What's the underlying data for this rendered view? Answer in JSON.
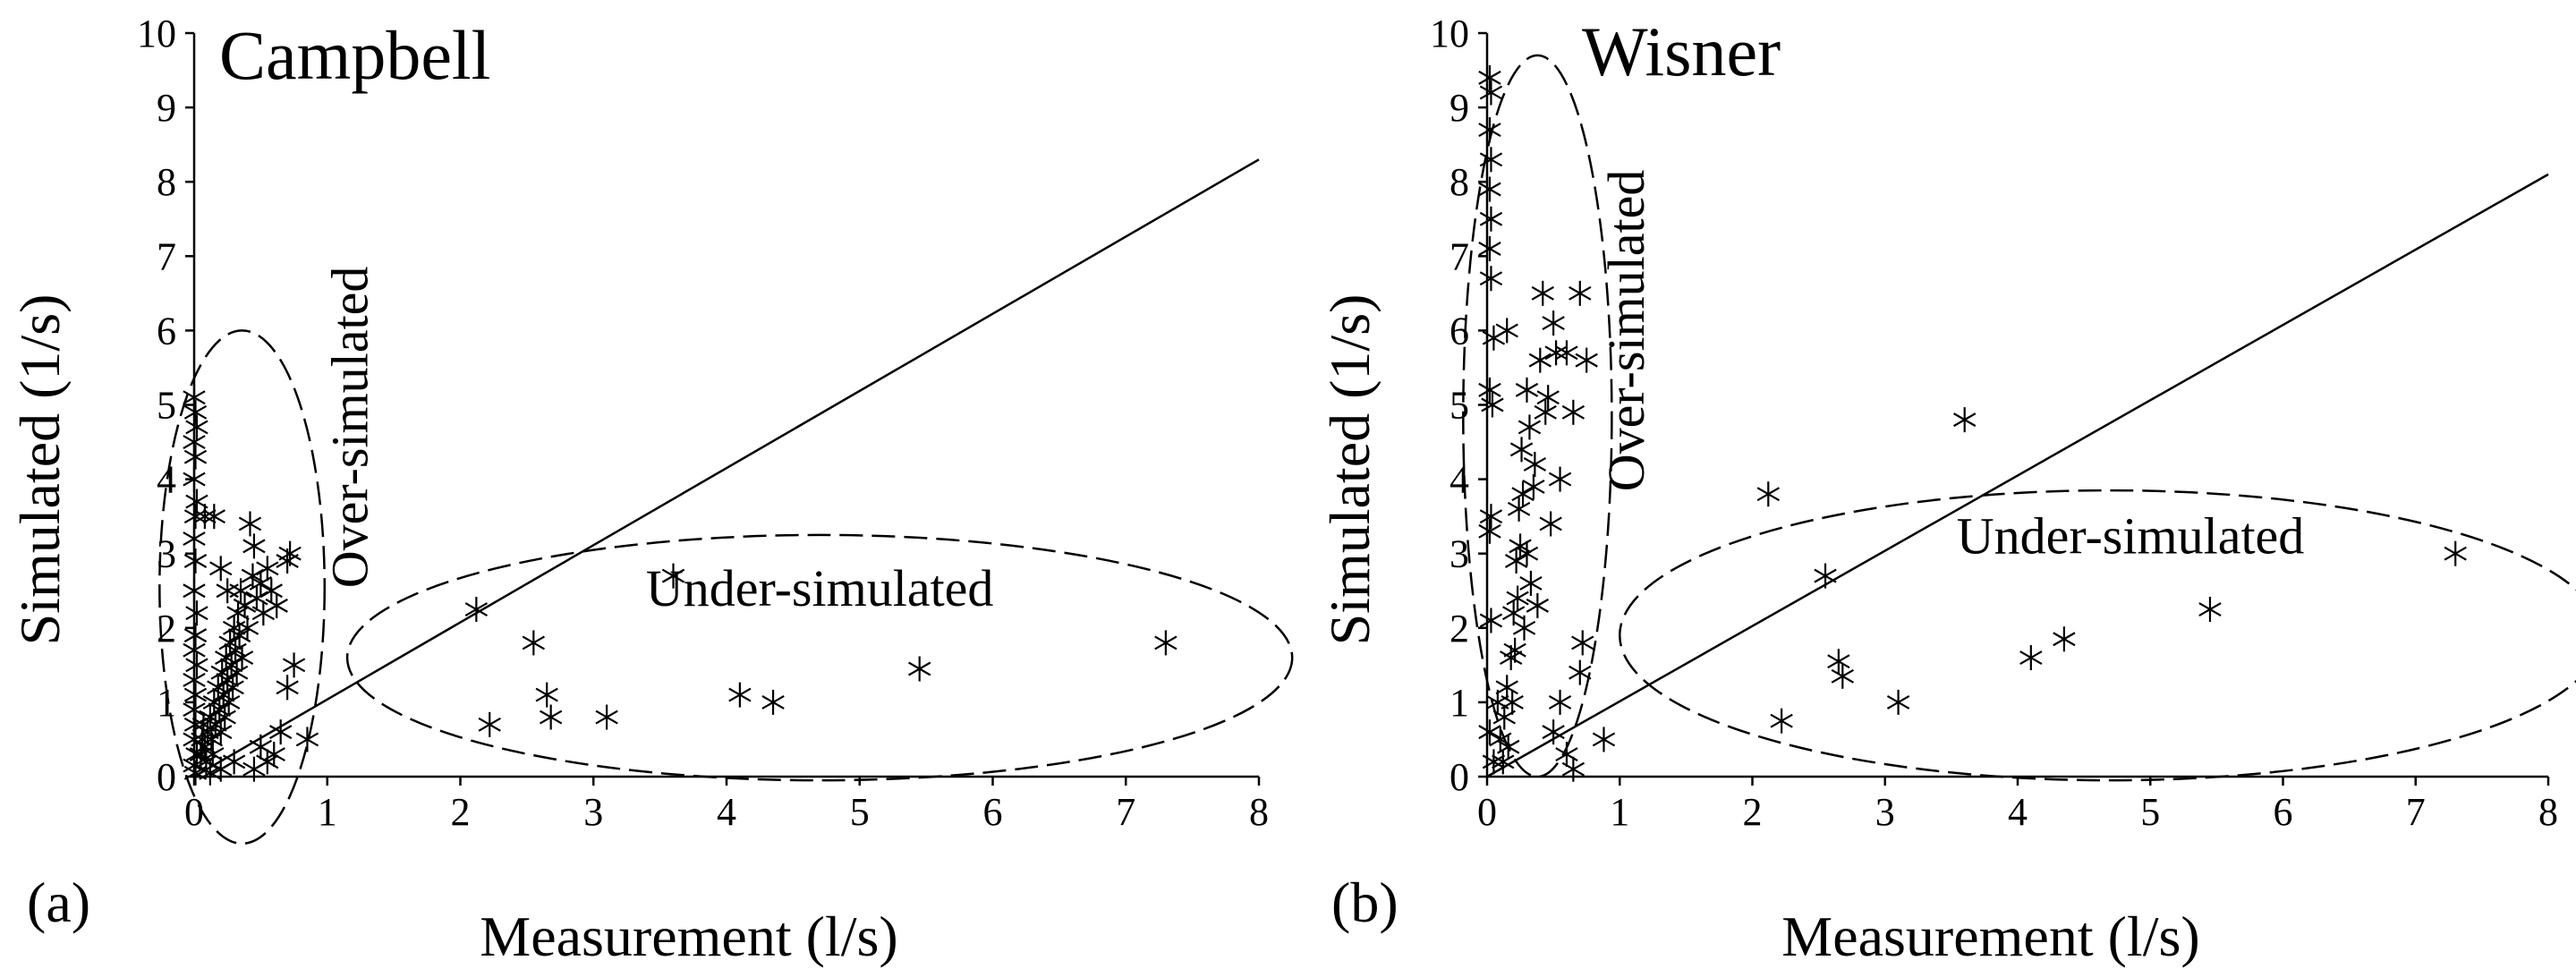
{
  "chart_data": [
    {
      "type": "scatter",
      "panel_tag": "(a)",
      "title": "Campbell",
      "xlabel": "Measurement (l/s)",
      "ylabel": "Simulated (1/s)",
      "xlim": [
        0,
        8
      ],
      "ylim": [
        0,
        10
      ],
      "x_ticks": [
        0,
        1,
        2,
        3,
        4,
        5,
        6,
        7,
        8
      ],
      "y_ticks": [
        0,
        1,
        2,
        3,
        4,
        5,
        6,
        7,
        8,
        9,
        10
      ],
      "grid": false,
      "marker": "asterisk",
      "line": {
        "type": "1:1",
        "from": [
          0,
          0
        ],
        "to": [
          8,
          8.3
        ]
      },
      "annotations": [
        {
          "text": "Over-simulated",
          "x": 1.3,
          "y": 4.7,
          "rotation": -90
        },
        {
          "text": "Under-simulated",
          "x": 4.7,
          "y": 2.3,
          "rotation": 0
        }
      ],
      "ellipses": [
        {
          "cx": 0.36,
          "cy": 2.55,
          "rx": 0.62,
          "ry": 3.45,
          "region": "over-simulated"
        },
        {
          "cx": 4.7,
          "cy": 1.6,
          "rx": 3.55,
          "ry": 1.65,
          "region": "under-simulated"
        }
      ],
      "points": [
        [
          0.0,
          5.1
        ],
        [
          0.01,
          4.9
        ],
        [
          0.02,
          4.7
        ],
        [
          0.0,
          4.5
        ],
        [
          0.01,
          4.3
        ],
        [
          0.0,
          4.0
        ],
        [
          0.02,
          3.7
        ],
        [
          0.01,
          3.5
        ],
        [
          0.0,
          3.2
        ],
        [
          0.01,
          2.9
        ],
        [
          0.0,
          2.5
        ],
        [
          0.02,
          2.2
        ],
        [
          0.01,
          1.9
        ],
        [
          0.0,
          1.7
        ],
        [
          0.02,
          1.5
        ],
        [
          0.0,
          1.3
        ],
        [
          0.01,
          1.1
        ],
        [
          0.0,
          0.9
        ],
        [
          0.01,
          0.7
        ],
        [
          0.0,
          0.5
        ],
        [
          0.02,
          0.3
        ],
        [
          0.0,
          0.15
        ],
        [
          0.01,
          0.05
        ],
        [
          0.05,
          0.3
        ],
        [
          0.06,
          0.5
        ],
        [
          0.07,
          0.7
        ],
        [
          0.08,
          0.4
        ],
        [
          0.09,
          0.2
        ],
        [
          0.1,
          0.6
        ],
        [
          0.12,
          0.8
        ],
        [
          0.13,
          0.5
        ],
        [
          0.14,
          0.3
        ],
        [
          0.15,
          1.0
        ],
        [
          0.16,
          0.7
        ],
        [
          0.18,
          1.2
        ],
        [
          0.19,
          0.9
        ],
        [
          0.2,
          0.6
        ],
        [
          0.21,
          1.4
        ],
        [
          0.22,
          1.1
        ],
        [
          0.23,
          0.8
        ],
        [
          0.24,
          1.6
        ],
        [
          0.25,
          1.3
        ],
        [
          0.26,
          1.0
        ],
        [
          0.27,
          1.8
        ],
        [
          0.28,
          1.5
        ],
        [
          0.29,
          1.2
        ],
        [
          0.3,
          2.0
        ],
        [
          0.31,
          1.7
        ],
        [
          0.32,
          1.4
        ],
        [
          0.33,
          2.2
        ],
        [
          0.34,
          1.9
        ],
        [
          0.35,
          2.5
        ],
        [
          0.36,
          1.6
        ],
        [
          0.38,
          2.3
        ],
        [
          0.4,
          2.0
        ],
        [
          0.42,
          3.4
        ],
        [
          0.44,
          2.7
        ],
        [
          0.45,
          3.1
        ],
        [
          0.47,
          2.4
        ],
        [
          0.5,
          2.6
        ],
        [
          0.52,
          2.2
        ],
        [
          0.55,
          2.8
        ],
        [
          0.58,
          2.5
        ],
        [
          0.62,
          2.3
        ],
        [
          0.7,
          2.9
        ],
        [
          0.72,
          3.0
        ],
        [
          0.75,
          1.5
        ],
        [
          0.7,
          1.2
        ],
        [
          0.65,
          0.6
        ],
        [
          0.6,
          0.3
        ],
        [
          0.55,
          0.2
        ],
        [
          0.5,
          0.4
        ],
        [
          0.45,
          0.1
        ],
        [
          0.85,
          0.5
        ],
        [
          0.3,
          0.2
        ],
        [
          0.2,
          0.1
        ],
        [
          0.12,
          0.05
        ],
        [
          0.08,
          3.5
        ],
        [
          0.15,
          3.5
        ],
        [
          0.2,
          2.8
        ],
        [
          0.25,
          2.5
        ],
        [
          2.12,
          2.25
        ],
        [
          2.22,
          0.7
        ],
        [
          2.55,
          1.8
        ],
        [
          2.65,
          1.1
        ],
        [
          2.68,
          0.8
        ],
        [
          3.1,
          0.8
        ],
        [
          3.6,
          2.7
        ],
        [
          4.1,
          1.1
        ],
        [
          4.35,
          1.0
        ],
        [
          5.45,
          1.45
        ],
        [
          7.3,
          1.8
        ]
      ]
    },
    {
      "type": "scatter",
      "panel_tag": "(b)",
      "title": "Wisner",
      "xlabel": "Measurement (l/s)",
      "ylabel": "Simulated (1/s)",
      "xlim": [
        0,
        8
      ],
      "ylim": [
        0,
        10
      ],
      "x_ticks": [
        0,
        1,
        2,
        3,
        4,
        5,
        6,
        7,
        8
      ],
      "y_ticks": [
        0,
        1,
        2,
        3,
        4,
        5,
        6,
        7,
        8,
        9,
        10
      ],
      "grid": false,
      "marker": "asterisk",
      "line": {
        "type": "1:1",
        "from": [
          0,
          0
        ],
        "to": [
          8,
          8.1
        ]
      },
      "annotations": [
        {
          "text": "Over-simulated",
          "x": 1.18,
          "y": 6.0,
          "rotation": -90
        },
        {
          "text": "Under-simulated",
          "x": 4.85,
          "y": 3.0,
          "rotation": 0
        }
      ],
      "ellipses": [
        {
          "cx": 0.38,
          "cy": 4.85,
          "rx": 0.56,
          "ry": 4.85,
          "region": "over-simulated"
        },
        {
          "cx": 4.7,
          "cy": 1.9,
          "rx": 3.7,
          "ry": 1.95,
          "region": "under-simulated"
        }
      ],
      "points": [
        [
          0.02,
          9.4
        ],
        [
          0.03,
          9.2
        ],
        [
          0.02,
          8.7
        ],
        [
          0.03,
          8.3
        ],
        [
          0.02,
          7.9
        ],
        [
          0.03,
          7.5
        ],
        [
          0.02,
          7.1
        ],
        [
          0.03,
          6.7
        ],
        [
          0.05,
          5.9
        ],
        [
          0.02,
          5.2
        ],
        [
          0.04,
          5.0
        ],
        [
          0.03,
          3.5
        ],
        [
          0.02,
          3.3
        ],
        [
          0.03,
          2.1
        ],
        [
          0.02,
          0.6
        ],
        [
          0.05,
          0.2
        ],
        [
          0.08,
          1.0
        ],
        [
          0.1,
          0.5
        ],
        [
          0.12,
          0.2
        ],
        [
          0.13,
          0.8
        ],
        [
          0.15,
          1.2
        ],
        [
          0.16,
          0.4
        ],
        [
          0.18,
          1.6
        ],
        [
          0.19,
          1.0
        ],
        [
          0.2,
          2.2
        ],
        [
          0.21,
          1.7
        ],
        [
          0.22,
          2.9
        ],
        [
          0.23,
          2.4
        ],
        [
          0.24,
          3.6
        ],
        [
          0.25,
          3.1
        ],
        [
          0.26,
          4.4
        ],
        [
          0.27,
          3.8
        ],
        [
          0.28,
          2.0
        ],
        [
          0.3,
          3.0
        ],
        [
          0.32,
          4.7
        ],
        [
          0.33,
          2.6
        ],
        [
          0.35,
          3.9
        ],
        [
          0.36,
          4.2
        ],
        [
          0.38,
          2.3
        ],
        [
          0.4,
          5.6
        ],
        [
          0.42,
          6.5
        ],
        [
          0.44,
          4.9
        ],
        [
          0.46,
          5.1
        ],
        [
          0.48,
          3.4
        ],
        [
          0.5,
          6.1
        ],
        [
          0.52,
          5.7
        ],
        [
          0.55,
          4.0
        ],
        [
          0.6,
          5.7
        ],
        [
          0.65,
          4.9
        ],
        [
          0.7,
          6.5
        ],
        [
          0.75,
          5.6
        ],
        [
          0.55,
          1.0
        ],
        [
          0.5,
          0.6
        ],
        [
          0.6,
          0.3
        ],
        [
          0.65,
          0.1
        ],
        [
          0.7,
          1.4
        ],
        [
          0.72,
          1.8
        ],
        [
          0.88,
          0.5
        ],
        [
          0.15,
          6.0
        ],
        [
          0.3,
          5.2
        ],
        [
          2.12,
          3.8
        ],
        [
          2.22,
          0.75
        ],
        [
          2.55,
          2.7
        ],
        [
          2.65,
          1.55
        ],
        [
          2.68,
          1.35
        ],
        [
          3.1,
          1.0
        ],
        [
          3.6,
          4.8
        ],
        [
          4.1,
          1.6
        ],
        [
          4.35,
          1.85
        ],
        [
          5.45,
          2.25
        ],
        [
          7.3,
          3.0
        ]
      ]
    }
  ]
}
